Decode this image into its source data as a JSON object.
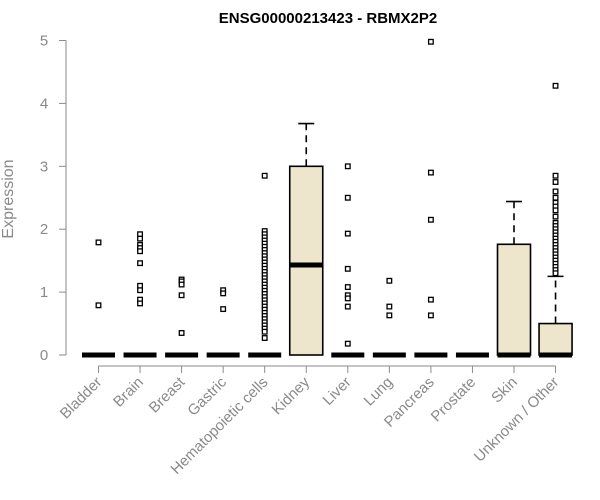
{
  "chart_data": {
    "type": "boxplot",
    "title": "ENSG00000213423 - RBMX2P2",
    "xlabel": "",
    "ylabel": "Expression",
    "ylim": [
      0,
      5
    ],
    "yticks": [
      0,
      1,
      2,
      3,
      4,
      5
    ],
    "box_fill": "#ede6cc",
    "box_stroke": "#000000",
    "axis_color": "#8a8a8a",
    "grid": false,
    "categories": [
      "Bladder",
      "Brain",
      "Breast",
      "Gastric",
      "Hematopoietic cells",
      "Kidney",
      "Liver",
      "Lung",
      "Pancreas",
      "Prostate",
      "Skin",
      "Unknown / Other"
    ],
    "boxes": [
      {
        "category": "Bladder",
        "q1": 0,
        "median": 0,
        "q3": 0,
        "whisker_low": 0,
        "whisker_high": 0,
        "outliers": [
          1.79,
          0.79
        ]
      },
      {
        "category": "Brain",
        "q1": 0,
        "median": 0,
        "q3": 0,
        "whisker_low": 0,
        "whisker_high": 0,
        "outliers": [
          1.92,
          1.85,
          1.75,
          1.7,
          1.65,
          1.46,
          1.1,
          1.03,
          0.88,
          0.82
        ]
      },
      {
        "category": "Breast",
        "q1": 0,
        "median": 0,
        "q3": 0,
        "whisker_low": 0,
        "whisker_high": 0,
        "outliers": [
          1.2,
          1.17,
          1.12,
          0.95,
          0.35
        ]
      },
      {
        "category": "Gastric",
        "q1": 0,
        "median": 0,
        "q3": 0,
        "whisker_low": 0,
        "whisker_high": 0,
        "outliers": [
          1.03,
          0.98,
          0.73
        ]
      },
      {
        "category": "Hematopoietic cells",
        "q1": 0,
        "median": 0,
        "q3": 0,
        "whisker_low": 0,
        "whisker_high": 0,
        "outliers": [
          2.85,
          1.97,
          1.92,
          1.87,
          1.82,
          1.77,
          1.72,
          1.67,
          1.62,
          1.57,
          1.52,
          1.47,
          1.42,
          1.37,
          1.32,
          1.27,
          1.22,
          1.17,
          1.12,
          1.07,
          1.02,
          0.97,
          0.92,
          0.87,
          0.82,
          0.77,
          0.72,
          0.67,
          0.62,
          0.57,
          0.52,
          0.47,
          0.42,
          0.37,
          0.27
        ]
      },
      {
        "category": "Kidney",
        "q1": 0,
        "median": 1.43,
        "q3": 3.0,
        "whisker_low": 0,
        "whisker_high": 3.68,
        "outliers": []
      },
      {
        "category": "Liver",
        "q1": 0,
        "median": 0,
        "q3": 0,
        "whisker_low": 0,
        "whisker_high": 0,
        "outliers": [
          3.0,
          2.5,
          1.93,
          1.37,
          1.08,
          0.95,
          0.9,
          0.77,
          0.18
        ]
      },
      {
        "category": "Lung",
        "q1": 0,
        "median": 0,
        "q3": 0,
        "whisker_low": 0,
        "whisker_high": 0,
        "outliers": [
          1.18,
          0.77,
          0.63
        ]
      },
      {
        "category": "Pancreas",
        "q1": 0,
        "median": 0,
        "q3": 0,
        "whisker_low": 0,
        "whisker_high": 0,
        "outliers": [
          4.98,
          2.9,
          2.15,
          0.88,
          0.63
        ]
      },
      {
        "category": "Prostate",
        "q1": 0,
        "median": 0,
        "q3": 0,
        "whisker_low": 0,
        "whisker_high": 0,
        "outliers": []
      },
      {
        "category": "Skin",
        "q1": 0,
        "median": 0,
        "q3": 1.76,
        "whisker_low": 0,
        "whisker_high": 2.44,
        "outliers": []
      },
      {
        "category": "Unknown / Other",
        "q1": 0,
        "median": 0,
        "q3": 0.5,
        "whisker_low": 0,
        "whisker_high": 1.25,
        "outliers": [
          4.28,
          2.85,
          2.75,
          2.6,
          2.5,
          2.42,
          2.36,
          2.3,
          2.2,
          2.1,
          2.05,
          2.0,
          1.95,
          1.9,
          1.85,
          1.8,
          1.75,
          1.7,
          1.65,
          1.6,
          1.55,
          1.5,
          1.45,
          1.4,
          1.35,
          1.3
        ]
      }
    ]
  }
}
